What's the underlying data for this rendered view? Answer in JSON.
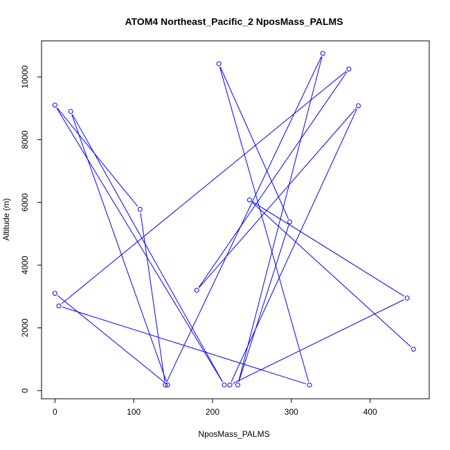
{
  "chart_data": {
    "type": "line",
    "title": "ATOM4 Northeast_Pacific_2 NposMass_PALMS",
    "xlabel": "NposMass_PALMS",
    "ylabel": "Altitude (m)",
    "xlim": [
      -17,
      475
    ],
    "ylim": [
      -260,
      11150
    ],
    "xticks": [
      0,
      100,
      200,
      300,
      400
    ],
    "yticks": [
      0,
      2000,
      4000,
      6000,
      8000,
      10000
    ],
    "grid": false,
    "colors": {
      "series": "#0000ff",
      "axis": "#000000",
      "background": "#ffffff"
    },
    "series": [
      {
        "marker": "open-circle",
        "points": [
          [
            0,
            3100
          ],
          [
            143,
            180
          ],
          [
            20,
            8900
          ],
          [
            215,
            180
          ],
          [
            0,
            9100
          ],
          [
            108,
            5780
          ],
          [
            140,
            180
          ],
          [
            340,
            10750
          ],
          [
            232,
            180
          ],
          [
            298,
            5380
          ],
          [
            208,
            10420
          ],
          [
            323,
            180
          ],
          [
            5,
            2700
          ],
          [
            373,
            10250
          ],
          [
            180,
            3200
          ],
          [
            385,
            9080
          ],
          [
            222,
            180
          ],
          [
            447,
            2950
          ],
          [
            247,
            6080
          ],
          [
            455,
            1320
          ]
        ]
      }
    ]
  }
}
